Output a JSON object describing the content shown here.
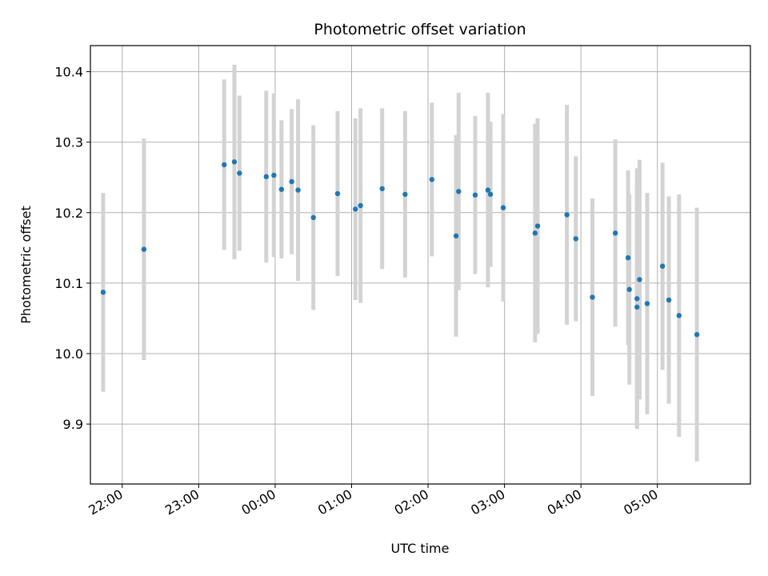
{
  "chart_data": {
    "type": "scatter",
    "title": "Photometric offset variation",
    "xlabel": "UTC time",
    "ylabel": "Photometric offset",
    "grid": true,
    "x_ticks": [
      "22:00",
      "23:00",
      "00:00",
      "01:00",
      "02:00",
      "03:00",
      "04:00",
      "05:00"
    ],
    "y_ticks": [
      9.9,
      10.0,
      10.1,
      10.2,
      10.3,
      10.4
    ],
    "ylim": [
      9.815,
      10.437
    ],
    "xlim": [
      "21:35",
      "06:13"
    ],
    "point_color": "#1f77b4",
    "errorbar_color": "#d3d3d3",
    "points": [
      {
        "x": "21:45",
        "y": 10.087,
        "yerr": 0.141
      },
      {
        "x": "22:17",
        "y": 10.148,
        "yerr": 0.157
      },
      {
        "x": "23:20",
        "y": 10.268,
        "yerr": 0.121
      },
      {
        "x": "23:28",
        "y": 10.272,
        "yerr": 0.138
      },
      {
        "x": "23:32",
        "y": 10.256,
        "yerr": 0.11
      },
      {
        "x": "23:53",
        "y": 10.251,
        "yerr": 0.122
      },
      {
        "x": "23:59",
        "y": 10.253,
        "yerr": 0.116
      },
      {
        "x": "00:05",
        "y": 10.233,
        "yerr": 0.098
      },
      {
        "x": "00:13",
        "y": 10.244,
        "yerr": 0.103
      },
      {
        "x": "00:18",
        "y": 10.232,
        "yerr": 0.129
      },
      {
        "x": "00:30",
        "y": 10.193,
        "yerr": 0.131
      },
      {
        "x": "00:49",
        "y": 10.227,
        "yerr": 0.117
      },
      {
        "x": "01:03",
        "y": 10.205,
        "yerr": 0.129
      },
      {
        "x": "01:07",
        "y": 10.21,
        "yerr": 0.138
      },
      {
        "x": "01:24",
        "y": 10.234,
        "yerr": 0.114
      },
      {
        "x": "01:42",
        "y": 10.226,
        "yerr": 0.118
      },
      {
        "x": "02:03",
        "y": 10.247,
        "yerr": 0.109
      },
      {
        "x": "02:22",
        "y": 10.167,
        "yerr": 0.143
      },
      {
        "x": "02:24",
        "y": 10.23,
        "yerr": 0.14
      },
      {
        "x": "02:37",
        "y": 10.225,
        "yerr": 0.112
      },
      {
        "x": "02:47",
        "y": 10.232,
        "yerr": 0.138
      },
      {
        "x": "02:49",
        "y": 10.226,
        "yerr": 0.103
      },
      {
        "x": "02:59",
        "y": 10.207,
        "yerr": 0.133
      },
      {
        "x": "03:24",
        "y": 10.171,
        "yerr": 0.155
      },
      {
        "x": "03:26",
        "y": 10.181,
        "yerr": 0.153
      },
      {
        "x": "03:49",
        "y": 10.197,
        "yerr": 0.156
      },
      {
        "x": "03:56",
        "y": 10.163,
        "yerr": 0.117
      },
      {
        "x": "04:09",
        "y": 10.08,
        "yerr": 0.14
      },
      {
        "x": "04:27",
        "y": 10.171,
        "yerr": 0.133
      },
      {
        "x": "04:37",
        "y": 10.136,
        "yerr": 0.124
      },
      {
        "x": "04:38",
        "y": 10.091,
        "yerr": 0.135
      },
      {
        "x": "04:44",
        "y": 10.066,
        "yerr": 0.172
      },
      {
        "x": "04:44",
        "y": 10.078,
        "yerr": 0.185
      },
      {
        "x": "04:46",
        "y": 10.105,
        "yerr": 0.17
      },
      {
        "x": "04:52",
        "y": 10.071,
        "yerr": 0.157
      },
      {
        "x": "05:04",
        "y": 10.124,
        "yerr": 0.147
      },
      {
        "x": "05:09",
        "y": 10.076,
        "yerr": 0.147
      },
      {
        "x": "05:17",
        "y": 10.054,
        "yerr": 0.172
      },
      {
        "x": "05:31",
        "y": 10.027,
        "yerr": 0.18
      }
    ]
  }
}
